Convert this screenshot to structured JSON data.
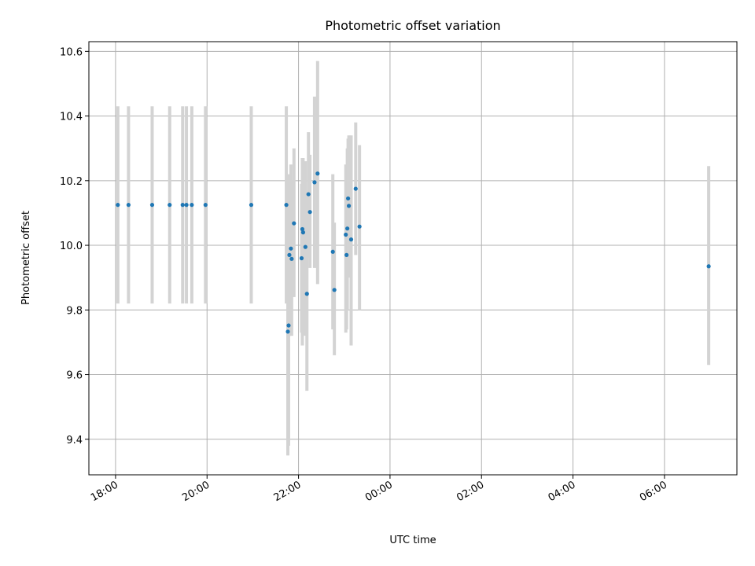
{
  "chart_data": {
    "type": "scatter",
    "title": "Photometric offset variation",
    "xlabel": "UTC time",
    "ylabel": "Photometric offset",
    "xlim": [
      "17:25",
      "07:35+1"
    ],
    "ylim": [
      9.29,
      10.63
    ],
    "x_ticks": [
      "18:00",
      "20:00",
      "22:00",
      "00:00",
      "02:00",
      "04:00",
      "06:00"
    ],
    "y_ticks": [
      "9.4",
      "9.6",
      "9.8",
      "10.0",
      "10.2",
      "10.4",
      "10.6"
    ],
    "grid": true,
    "marker_color": "#1f77b4",
    "errorbar_color": "#d3d3d3",
    "points": [
      {
        "t": "18:03",
        "y": 10.125,
        "lo": 9.82,
        "hi": 10.43
      },
      {
        "t": "18:17",
        "y": 10.125,
        "lo": 9.82,
        "hi": 10.43
      },
      {
        "t": "18:48",
        "y": 10.125,
        "lo": 9.82,
        "hi": 10.43
      },
      {
        "t": "19:11",
        "y": 10.125,
        "lo": 9.82,
        "hi": 10.43
      },
      {
        "t": "19:28",
        "y": 10.125,
        "lo": 9.82,
        "hi": 10.43
      },
      {
        "t": "19:33",
        "y": 10.125,
        "lo": 9.82,
        "hi": 10.43
      },
      {
        "t": "19:40",
        "y": 10.125,
        "lo": 9.82,
        "hi": 10.43
      },
      {
        "t": "19:58",
        "y": 10.125,
        "lo": 9.82,
        "hi": 10.43
      },
      {
        "t": "20:58",
        "y": 10.125,
        "lo": 9.82,
        "hi": 10.43
      },
      {
        "t": "21:44",
        "y": 10.125,
        "lo": 9.82,
        "hi": 10.43
      },
      {
        "t": "21:46",
        "y": 9.733,
        "lo": 9.35,
        "hi": 10.12
      },
      {
        "t": "21:47",
        "y": 9.752,
        "lo": 9.38,
        "hi": 10.12
      },
      {
        "t": "21:48",
        "y": 9.97,
        "lo": 9.72,
        "hi": 10.22
      },
      {
        "t": "21:50",
        "y": 9.99,
        "lo": 9.72,
        "hi": 10.25
      },
      {
        "t": "21:51",
        "y": 9.958,
        "lo": 9.72,
        "hi": 10.2
      },
      {
        "t": "21:54",
        "y": 10.068,
        "lo": 9.84,
        "hi": 10.3
      },
      {
        "t": "22:04",
        "y": 9.96,
        "lo": 9.73,
        "hi": 10.19
      },
      {
        "t": "22:05",
        "y": 10.05,
        "lo": 9.69,
        "hi": 10.27
      },
      {
        "t": "22:06",
        "y": 10.04,
        "lo": 9.78,
        "hi": 10.27
      },
      {
        "t": "22:09",
        "y": 9.995,
        "lo": 9.72,
        "hi": 10.26
      },
      {
        "t": "22:11",
        "y": 9.85,
        "lo": 9.55,
        "hi": 10.15
      },
      {
        "t": "22:13",
        "y": 10.158,
        "lo": 9.96,
        "hi": 10.35
      },
      {
        "t": "22:15",
        "y": 10.103,
        "lo": 9.93,
        "hi": 10.28
      },
      {
        "t": "22:21",
        "y": 10.195,
        "lo": 9.93,
        "hi": 10.46
      },
      {
        "t": "22:25",
        "y": 10.222,
        "lo": 9.88,
        "hi": 10.57
      },
      {
        "t": "22:45",
        "y": 9.98,
        "lo": 9.74,
        "hi": 10.22
      },
      {
        "t": "22:47",
        "y": 9.862,
        "lo": 9.66,
        "hi": 10.07
      },
      {
        "t": "23:02",
        "y": 10.033,
        "lo": 9.73,
        "hi": 10.25
      },
      {
        "t": "23:03",
        "y": 9.97,
        "lo": 9.74,
        "hi": 10.2
      },
      {
        "t": "23:04",
        "y": 10.052,
        "lo": 9.8,
        "hi": 10.3
      },
      {
        "t": "23:05",
        "y": 10.145,
        "lo": 9.96,
        "hi": 10.33
      },
      {
        "t": "23:06",
        "y": 10.122,
        "lo": 9.9,
        "hi": 10.34
      },
      {
        "t": "23:09",
        "y": 10.018,
        "lo": 9.69,
        "hi": 10.34
      },
      {
        "t": "23:15",
        "y": 10.175,
        "lo": 9.97,
        "hi": 10.38
      },
      {
        "t": "23:20",
        "y": 10.058,
        "lo": 9.8,
        "hi": 10.31
      },
      {
        "t": "06:58+1",
        "y": 9.935,
        "lo": 9.63,
        "hi": 10.245
      }
    ]
  }
}
